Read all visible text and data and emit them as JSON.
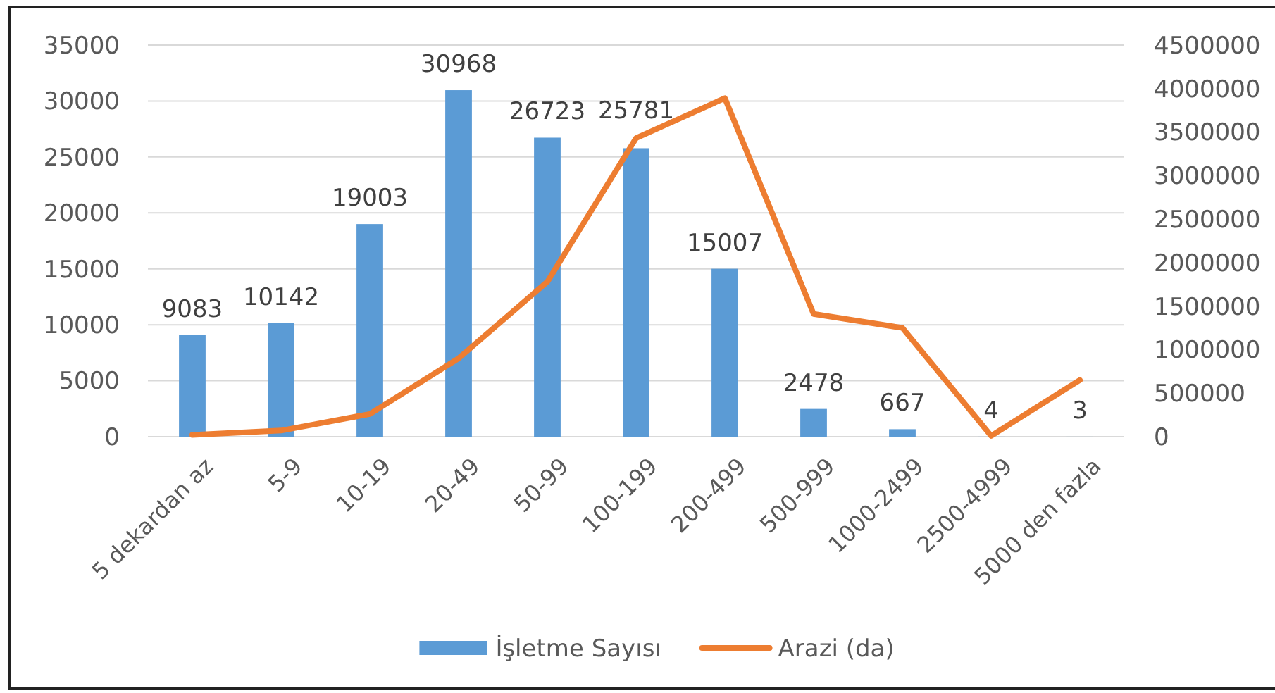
{
  "chart_data": {
    "type": "bar",
    "categories": [
      "5 dekardan az",
      "5-9",
      "10-19",
      "20-49",
      "50-99",
      "100-199",
      "200-499",
      "500-999",
      "1000-2499",
      "2500-4999",
      "5000 den fazla"
    ],
    "series": [
      {
        "name": "İşletme Sayısı",
        "color": "#5b9bd5",
        "values": [
          9083,
          10142,
          19003,
          30968,
          26723,
          25781,
          15007,
          2478,
          667,
          4,
          3
        ],
        "value_labels": [
          "9083",
          "10142",
          "19003",
          "30968",
          "26723",
          "25781",
          "15007",
          "2478",
          "667",
          "4",
          "3"
        ]
      },
      {
        "name": "Arazi (da)",
        "type": "line",
        "axis": "y2",
        "color": "#ed7d31",
        "values": [
          20000,
          70000,
          260000,
          900000,
          1780000,
          3430000,
          3890000,
          1410000,
          1250000,
          10000,
          650000
        ]
      }
    ],
    "ylim": [
      0,
      35000
    ],
    "yticks": [
      0,
      5000,
      10000,
      15000,
      20000,
      25000,
      30000,
      35000
    ],
    "y2lim": [
      0,
      4500000
    ],
    "y2ticks": [
      0,
      500000,
      1000000,
      1500000,
      2000000,
      2500000,
      3000000,
      3500000,
      4000000,
      4500000
    ],
    "grid": "y",
    "legend": "bottom",
    "line_style": "solid"
  }
}
